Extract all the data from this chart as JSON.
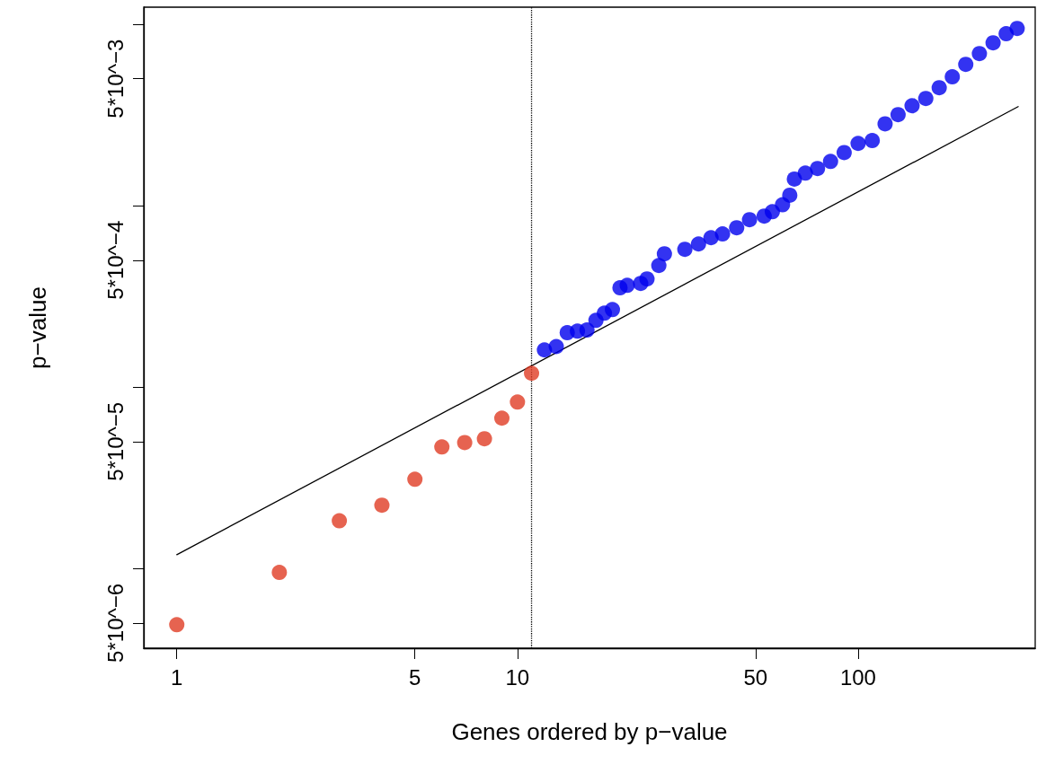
{
  "chart_data": {
    "type": "scatter",
    "xlabel": "Genes ordered by p−value",
    "ylabel": "p−value",
    "log": "xy",
    "grid": false,
    "marker": "circle",
    "xlim": [
      0.8,
      331
    ],
    "xticks": [
      1,
      5,
      10,
      50,
      100
    ],
    "ylim": [
      3.63e-06,
      0.0124
    ],
    "yticks": [
      {
        "value": 5e-06,
        "label": "5*10^−6"
      },
      {
        "value": 1e-05,
        "label": null
      },
      {
        "value": 5e-05,
        "label": "5*10^−5"
      },
      {
        "value": 0.0001,
        "label": null
      },
      {
        "value": 0.0005,
        "label": "5*10^−4"
      },
      {
        "value": 0.001,
        "label": null
      },
      {
        "value": 0.005,
        "label": "5*10^−3"
      },
      {
        "value": 0.01,
        "label": null
      }
    ],
    "series": [
      {
        "type": "line",
        "color": "#000000",
        "marker": "none",
        "line_style": "solid",
        "x": [
          1,
          295
        ],
        "values": [
          1.19e-05,
          0.00351
        ]
      },
      {
        "color": "#e03c24",
        "x": [
          1,
          2,
          3,
          4,
          5,
          6,
          7,
          8,
          9,
          10,
          11
        ],
        "values": [
          4.89e-06,
          9.5e-06,
          1.83e-05,
          2.23e-05,
          3.1e-05,
          4.67e-05,
          4.94e-05,
          5.18e-05,
          6.73e-05,
          8.26e-05,
          0.000119
        ]
      },
      {
        "color": "#0000ee",
        "x": [
          12,
          13,
          14,
          15,
          16,
          17,
          18,
          19,
          20,
          21,
          23,
          24,
          26,
          27,
          31,
          34,
          37,
          40,
          44,
          48,
          53,
          56,
          60,
          63,
          65,
          70,
          76,
          83,
          91,
          100,
          110,
          120,
          131,
          144,
          158,
          173,
          189,
          207,
          227,
          249,
          272,
          293
        ],
        "values": [
          0.00016,
          0.000167,
          0.000199,
          0.000203,
          0.000206,
          0.000233,
          0.000255,
          0.000267,
          0.000352,
          0.000363,
          0.000372,
          0.000394,
          0.000467,
          0.000542,
          0.000574,
          0.000614,
          0.000665,
          0.000697,
          0.000754,
          0.000836,
          0.000875,
          0.000925,
          0.00101,
          0.00114,
          0.0014,
          0.00151,
          0.0016,
          0.00175,
          0.00196,
          0.0022,
          0.00228,
          0.00282,
          0.00317,
          0.00355,
          0.00389,
          0.00446,
          0.00512,
          0.006,
          0.00688,
          0.00789,
          0.00885,
          0.00947
        ]
      }
    ],
    "ref_lines": [
      {
        "axis": "x",
        "value": 11,
        "color": "#000000",
        "line_style": "dotted"
      }
    ]
  }
}
